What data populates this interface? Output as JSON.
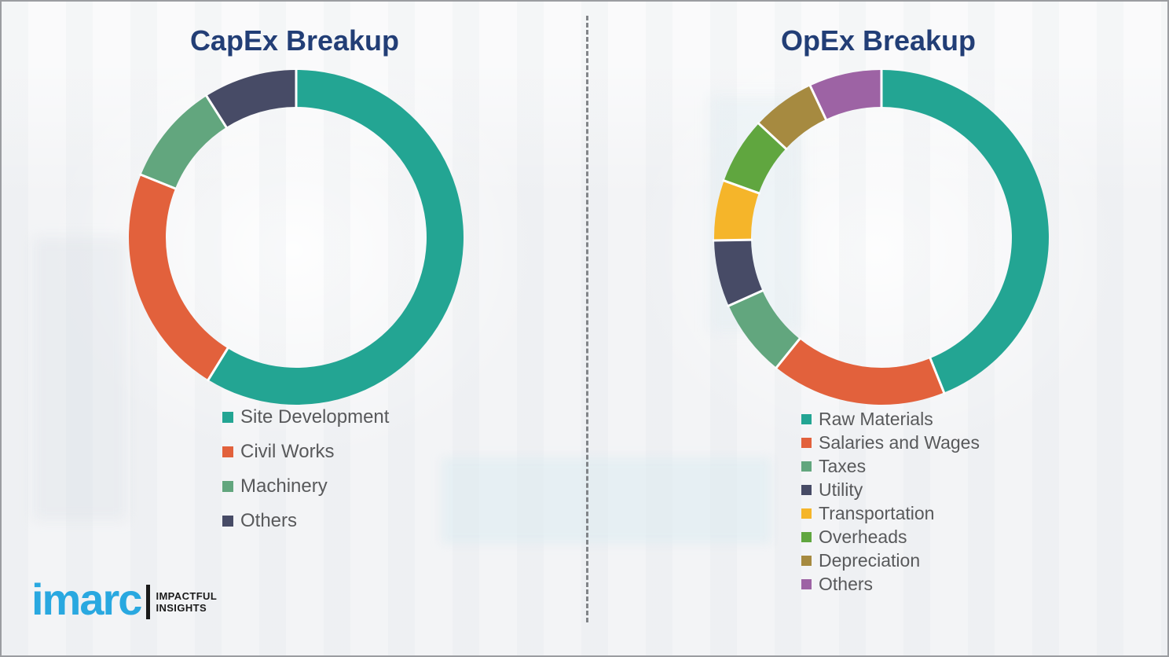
{
  "chart_data": [
    {
      "type": "pie",
      "subtype": "donut",
      "title": "CapEx Breakup",
      "categories": [
        "Site Development",
        "Civil Works",
        "Machinery",
        "Others"
      ],
      "values": [
        58.8,
        22.3,
        9.9,
        9.0
      ],
      "colors": [
        "#23a593",
        "#e2613c",
        "#62a67e",
        "#474b66"
      ],
      "units": "percent-estimated",
      "start_angle": "top",
      "direction": "clockwise",
      "legend_position": "below-left",
      "data_labels_shown": false
    },
    {
      "type": "pie",
      "subtype": "donut",
      "title": "OpEx Breakup",
      "categories": [
        "Raw Materials",
        "Salaries and Wages",
        "Taxes",
        "Utility",
        "Transportation",
        "Overheads",
        "Depreciation",
        "Others"
      ],
      "values": [
        43.9,
        16.9,
        7.5,
        6.4,
        5.8,
        6.4,
        6.1,
        7.0
      ],
      "colors": [
        "#23a593",
        "#e2613c",
        "#62a67e",
        "#474b66",
        "#f5b52a",
        "#60a63f",
        "#a68a40",
        "#9d63a4"
      ],
      "units": "percent-estimated",
      "start_angle": "top",
      "direction": "clockwise",
      "legend_position": "below-left",
      "data_labels_shown": false
    }
  ],
  "logo": {
    "brand": "imarc",
    "tagline_line1": "IMPACTFUL",
    "tagline_line2": "INSIGHTS",
    "brand_color": "#29a8e0"
  },
  "style": {
    "title_color": "#223e76",
    "legend_text_color": "#58595b",
    "separator_color": "#ffffff",
    "divider_color": "#6f7276",
    "background_color": "#f3f4f6"
  }
}
